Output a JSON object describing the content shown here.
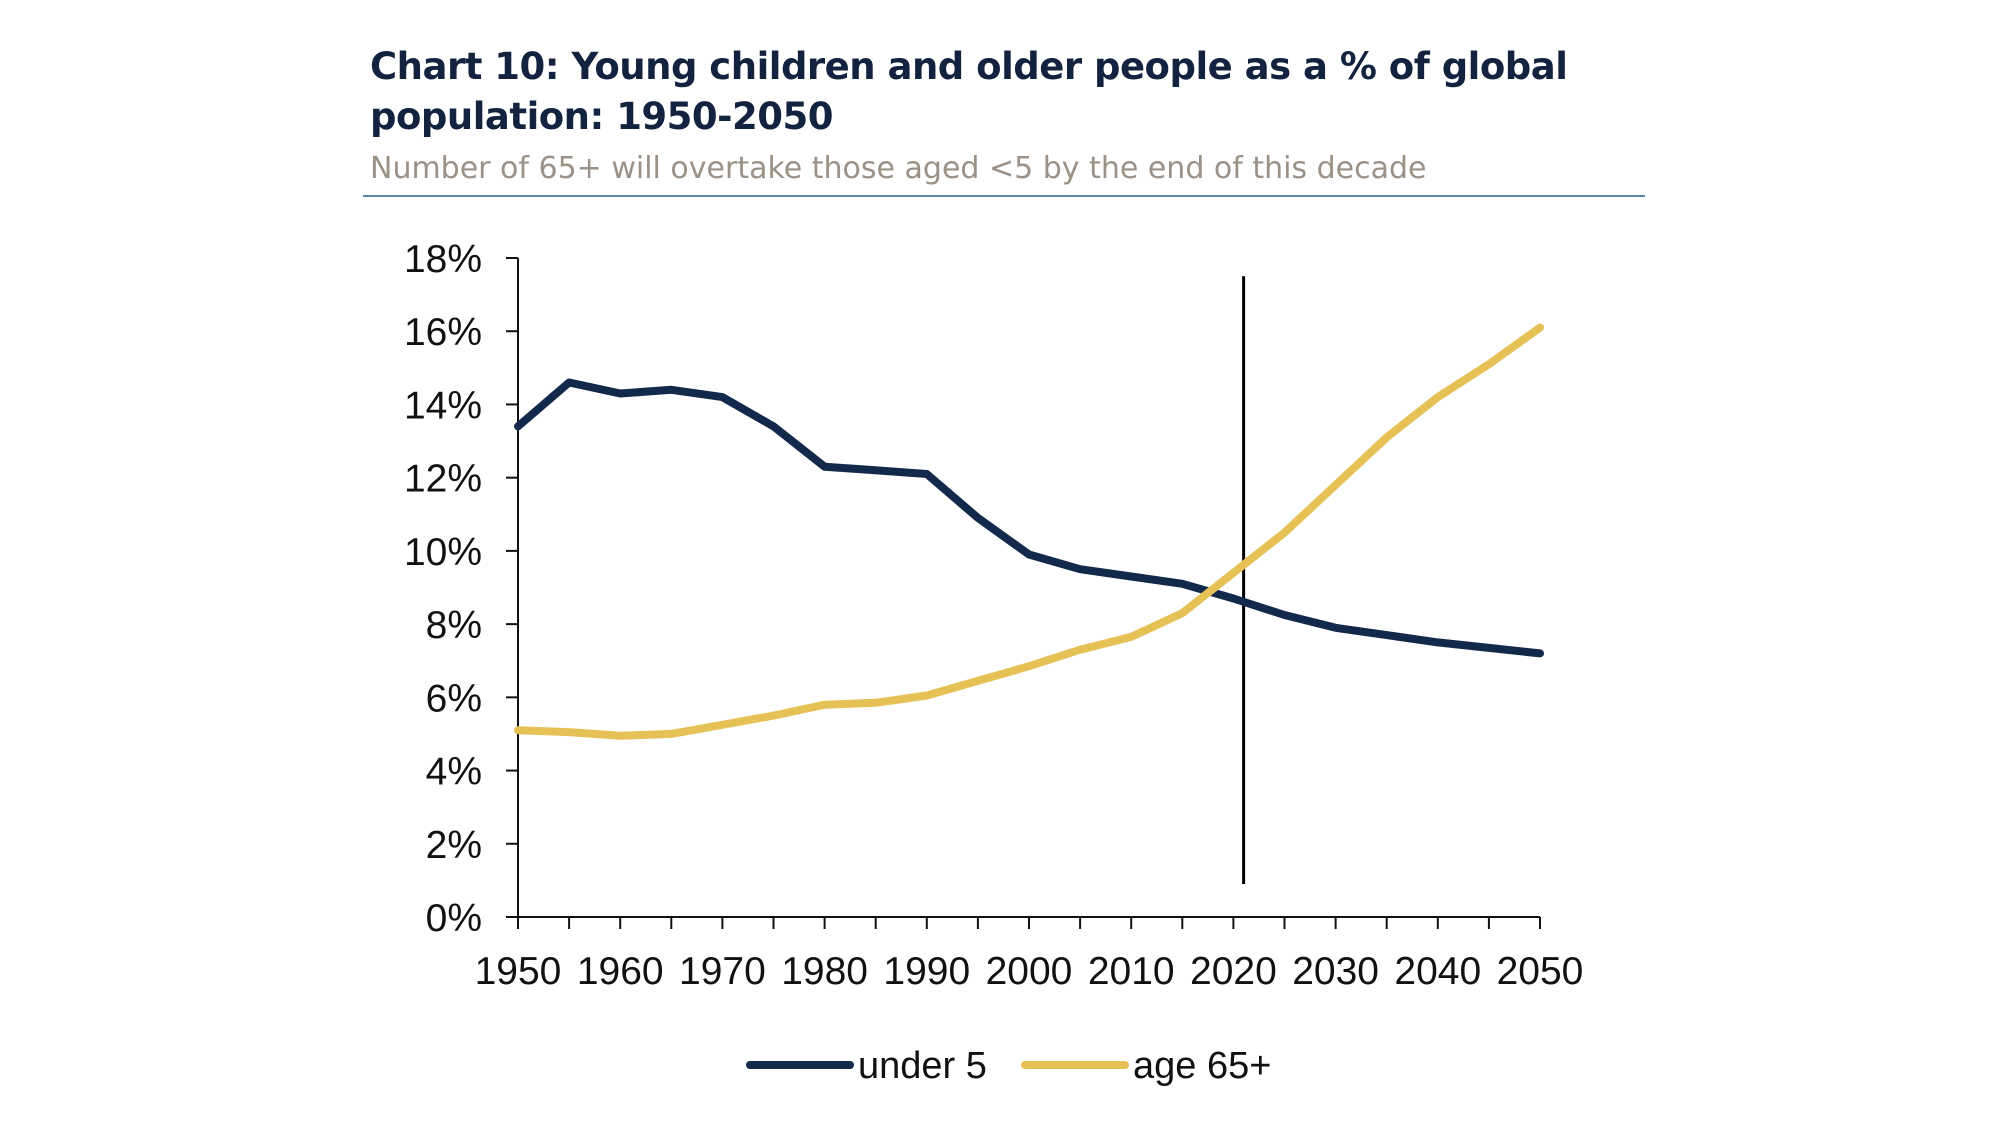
{
  "chart_data": {
    "type": "line",
    "title": "Chart 10: Young children and older people as a % of global population: 1950-2050",
    "subtitle": "Number of 65+ will overtake those aged <5 by the end of this decade",
    "x": [
      1950,
      1955,
      1960,
      1965,
      1970,
      1975,
      1980,
      1985,
      1990,
      1995,
      2000,
      2005,
      2010,
      2015,
      2020,
      2025,
      2030,
      2035,
      2040,
      2045,
      2050
    ],
    "series": [
      {
        "name": "under 5",
        "color": "#13294b",
        "values": [
          13.4,
          14.6,
          14.3,
          14.4,
          14.2,
          13.4,
          12.3,
          12.2,
          12.1,
          10.9,
          9.9,
          9.5,
          9.3,
          9.1,
          8.7,
          8.25,
          7.9,
          7.7,
          7.5,
          7.35,
          7.2
        ]
      },
      {
        "name": "age 65+",
        "color": "#e6c155",
        "values": [
          5.1,
          5.05,
          4.95,
          5.0,
          5.25,
          5.5,
          5.8,
          5.85,
          6.05,
          6.45,
          6.85,
          7.3,
          7.65,
          8.3,
          9.4,
          10.5,
          11.8,
          13.1,
          14.2,
          15.1,
          16.1
        ]
      }
    ],
    "ylim": [
      0,
      18
    ],
    "yticks": [
      0,
      2,
      4,
      6,
      8,
      10,
      12,
      14,
      16,
      18
    ],
    "ytick_labels": [
      "0%",
      "2%",
      "4%",
      "6%",
      "8%",
      "10%",
      "12%",
      "14%",
      "16%",
      "18%"
    ],
    "xlim": [
      1950,
      2050
    ],
    "xticks_minor": [
      1950,
      1955,
      1960,
      1965,
      1970,
      1975,
      1980,
      1985,
      1990,
      1995,
      2000,
      2005,
      2010,
      2015,
      2020,
      2025,
      2030,
      2035,
      2040,
      2045,
      2050
    ],
    "xtick_labels": [
      "1950",
      "1960",
      "1970",
      "1980",
      "1990",
      "2000",
      "2010",
      "2020",
      "2030",
      "2040",
      "2050"
    ],
    "xtick_label_values": [
      1950,
      1960,
      1970,
      1980,
      1990,
      2000,
      2010,
      2020,
      2030,
      2040,
      2050
    ],
    "annotations": [
      {
        "type": "vertical-line",
        "x": 2021,
        "y_from": 0.9,
        "y_to": 17.5,
        "color": "#000000"
      }
    ],
    "legend": {
      "placement": "bottom-center"
    },
    "grid": false,
    "xlabel": "",
    "ylabel": ""
  }
}
